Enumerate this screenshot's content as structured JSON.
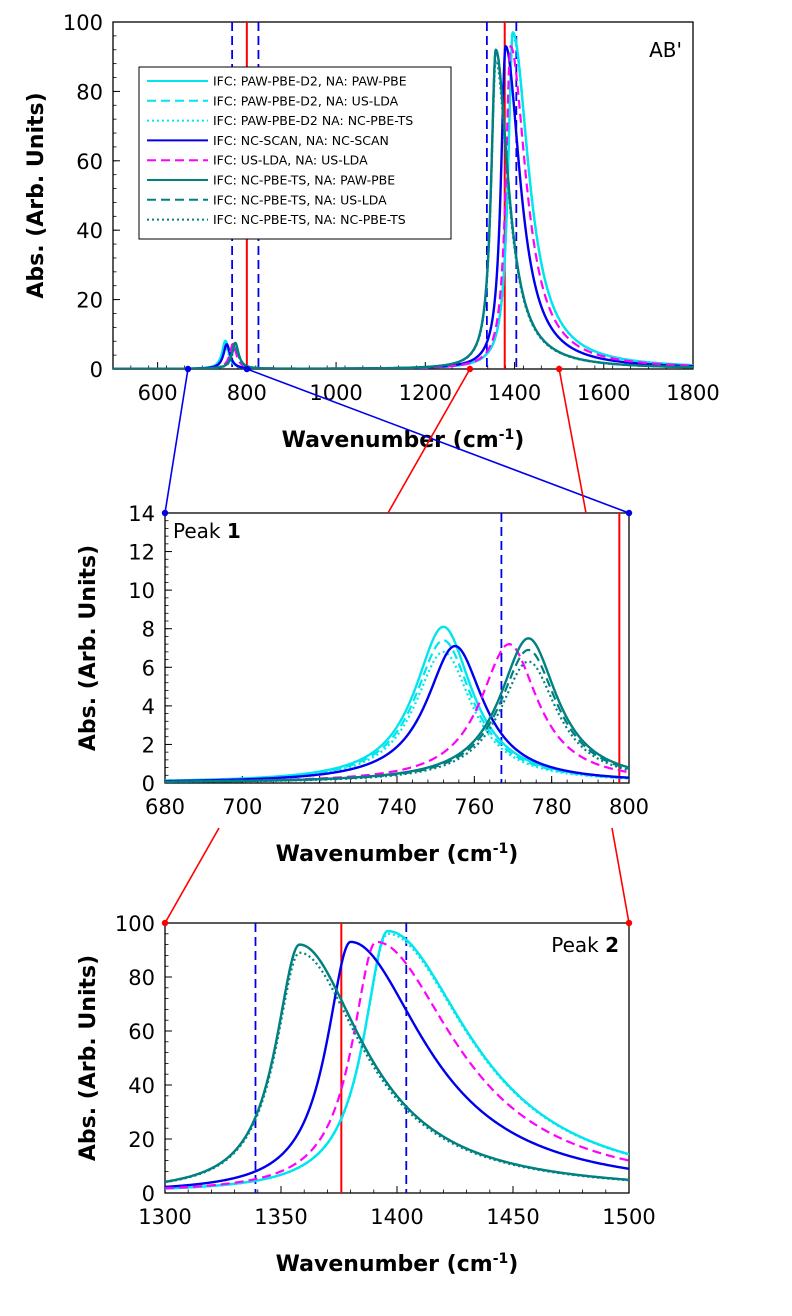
{
  "chart_data": [
    {
      "type": "line",
      "id": "overview",
      "title": "AB'",
      "xlabel": "Wavenumber (cm",
      "xlabel_sup": "-1",
      "xlabel_close": ")",
      "ylabel": "Abs. (Arb. Units)",
      "xlim": [
        500,
        1800
      ],
      "ylim": [
        0,
        100
      ],
      "xticks": [
        600,
        800,
        1000,
        1200,
        1400,
        1600,
        1800
      ],
      "yticks": [
        0,
        20,
        40,
        60,
        80,
        100
      ],
      "exp_lines": [
        800,
        1378
      ],
      "dashed_lines": [
        767,
        826,
        1338,
        1404
      ],
      "legend": [
        "IFC: PAW-PBE-D2, NA: PAW-PBE",
        "IFC: PAW-PBE-D2, NA: US-LDA",
        "IFC: PAW-PBE-D2 NA: NC-PBE-TS",
        "IFC: NC-SCAN, NA: NC-SCAN",
        "IFC: US-LDA, NA: US-LDA",
        "IFC: NC-PBE-TS, NA: PAW-PBE",
        "IFC: NC-PBE-TS, NA: US-LDA",
        "IFC: NC-PBE-TS, NA: NC-PBE-TS"
      ]
    },
    {
      "type": "line",
      "id": "peak1",
      "label": "Peak",
      "label_num": "1",
      "xlabel": "Wavenumber (cm",
      "xlabel_sup": "-1",
      "xlabel_close": ")",
      "ylabel": "Abs. (Arb. Units)",
      "xlim": [
        680,
        800
      ],
      "ylim": [
        0,
        14
      ],
      "xticks": [
        680,
        700,
        720,
        740,
        760,
        780,
        800
      ],
      "yticks": [
        0,
        2,
        4,
        6,
        8,
        10,
        12,
        14
      ],
      "exp_lines": [
        797.5
      ],
      "dashed_lines": [
        767
      ]
    },
    {
      "type": "line",
      "id": "peak2",
      "label": "Peak",
      "label_num": "2",
      "xlabel": "Wavenumber (cm",
      "xlabel_sup": "-1",
      "xlabel_close": ")",
      "ylabel": "Abs. (Arb. Units)",
      "xlim": [
        1300,
        1500
      ],
      "ylim": [
        0,
        100
      ],
      "xticks": [
        1300,
        1350,
        1400,
        1450,
        1500
      ],
      "yticks": [
        0,
        20,
        40,
        60,
        80,
        100
      ],
      "exp_lines": [
        1376
      ],
      "dashed_lines": [
        1339,
        1404
      ]
    }
  ],
  "series": [
    {
      "name": "IFC: PAW-PBE-D2, NA: PAW-PBE",
      "color": "#00e5ee",
      "dash": "solid",
      "peak1": {
        "center": 752,
        "height": 8.1,
        "gamma": 9
      },
      "peak2": {
        "center": 1396,
        "height": 97,
        "gamma": 14,
        "tail": 3.1
      }
    },
    {
      "name": "IFC: PAW-PBE-D2, NA: US-LDA",
      "color": "#00e5ee",
      "dash": "dashed",
      "peak1": {
        "center": 752,
        "height": 7.4,
        "gamma": 9
      },
      "peak2": {
        "center": 1396,
        "height": 97,
        "gamma": 14,
        "tail": 3.1
      }
    },
    {
      "name": "IFC: PAW-PBE-D2 NA: NC-PBE-TS",
      "color": "#00e5ee",
      "dash": "dotted",
      "peak1": {
        "center": 752,
        "height": 6.8,
        "gamma": 9
      },
      "peak2": {
        "center": 1396,
        "height": 96,
        "gamma": 14,
        "tail": 3.1
      }
    },
    {
      "name": "IFC: NC-SCAN, NA: NC-SCAN",
      "color": "#0000ee",
      "dash": "solid",
      "peak1": {
        "center": 755,
        "height": 7.1,
        "gamma": 9
      },
      "peak2": {
        "center": 1380,
        "height": 93,
        "gamma": 14,
        "tail": 2.8
      }
    },
    {
      "name": "IFC: US-LDA, NA: US-LDA",
      "color": "#ff00ff",
      "dash": "dashed",
      "peak1": {
        "center": 769,
        "height": 7.2,
        "gamma": 9
      },
      "peak2": {
        "center": 1391,
        "height": 93,
        "gamma": 14,
        "tail": 3.0
      }
    },
    {
      "name": "IFC: NC-PBE-TS, NA: PAW-PBE",
      "color": "#008080",
      "dash": "solid",
      "peak1": {
        "center": 774,
        "height": 7.5,
        "gamma": 9
      },
      "peak2": {
        "center": 1358,
        "height": 92,
        "gamma": 14,
        "tail": 2.4
      }
    },
    {
      "name": "IFC: NC-PBE-TS, NA: US-LDA",
      "color": "#008080",
      "dash": "dashed",
      "peak1": {
        "center": 774,
        "height": 6.9,
        "gamma": 9
      },
      "peak2": {
        "center": 1358,
        "height": 92,
        "gamma": 14,
        "tail": 2.4
      }
    },
    {
      "name": "IFC: NC-PBE-TS, NA: NC-PBE-TS",
      "color": "#008080",
      "dash": "dotted",
      "peak1": {
        "center": 774,
        "height": 6.3,
        "gamma": 9
      },
      "peak2": {
        "center": 1358,
        "height": 89,
        "gamma": 14,
        "tail": 2.4
      }
    }
  ],
  "colors": {
    "exp_line": "#ff0000",
    "dashed_ref": "#0000ee",
    "connector_blue": "#0000ee",
    "connector_red": "#ff0000"
  }
}
